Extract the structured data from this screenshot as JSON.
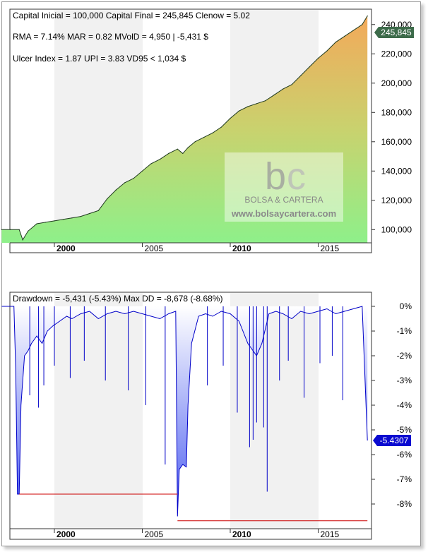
{
  "chart_data": [
    {
      "type": "area",
      "name": "equity",
      "stats": [
        "Capital Inicial = 100,000  Capital Final = 245,845  Clenow = 5.02",
        "RMA = 7.14%   MAR = 0.82  MVolD = 4,950 | -5,431 $",
        "Ulcer Index = 1.87   UPI = 3.83   VD95 < 1,034 $"
      ],
      "x": [
        1997.0,
        1997.5,
        1998.0,
        1998.2,
        1998.5,
        1999.0,
        1999.5,
        2000.0,
        2000.5,
        2001.0,
        2001.5,
        2002.0,
        2002.5,
        2003.0,
        2003.5,
        2004.0,
        2004.5,
        2005.0,
        2005.5,
        2006.0,
        2006.5,
        2007.0,
        2007.3,
        2007.6,
        2008.0,
        2008.5,
        2009.0,
        2009.5,
        2010.0,
        2010.5,
        2011.0,
        2011.5,
        2012.0,
        2012.5,
        2013.0,
        2013.5,
        2014.0,
        2014.5,
        2015.0,
        2015.5,
        2016.0,
        2016.5,
        2017.0,
        2017.5,
        2017.8
      ],
      "y": [
        100000,
        100000,
        100000,
        93000,
        99000,
        104000,
        105000,
        106000,
        107000,
        108000,
        109000,
        111000,
        113000,
        121000,
        127000,
        132000,
        135000,
        140000,
        145000,
        148000,
        152000,
        155000,
        152000,
        156000,
        160000,
        163000,
        166000,
        170000,
        176000,
        181000,
        184000,
        186000,
        188000,
        192000,
        196000,
        199000,
        205000,
        211000,
        217000,
        222000,
        228000,
        232000,
        236000,
        240000,
        245845
      ],
      "ylim": [
        91000,
        250000
      ],
      "y_ticks": [
        "100,000",
        "120,000",
        "140,000",
        "160,000",
        "180,000",
        "200,000",
        "220,000",
        "240,000"
      ],
      "x_ticks": [
        "2000",
        "2005",
        "2010",
        "2015"
      ],
      "last_value_label": "245,845",
      "colors": {
        "area_top": "#f3a95a",
        "area_bottom": "#8ef08a",
        "line": "#1f3a1f",
        "badge": "#3d6b4a"
      }
    },
    {
      "type": "area",
      "name": "drawdown",
      "stats": [
        "Drawdown = -5,431 (-5.43%)      Max DD = -8,678 (-8.68%)"
      ],
      "x": [
        1997.0,
        1997.7,
        1997.8,
        1997.9,
        1998.0,
        1998.1,
        1998.2,
        1998.3,
        1998.5,
        1998.7,
        1999.0,
        1999.3,
        1999.6,
        1999.9,
        2000.3,
        2000.7,
        2001.0,
        2001.5,
        2002.0,
        2002.5,
        2003.0,
        2003.5,
        2004.0,
        2004.5,
        2005.0,
        2005.5,
        2006.0,
        2006.5,
        2006.9,
        2007.0,
        2007.1,
        2007.3,
        2007.5,
        2007.6,
        2007.8,
        2008.2,
        2008.6,
        2009.0,
        2009.5,
        2010.0,
        2010.5,
        2011.0,
        2011.5,
        2011.8,
        2012.2,
        2012.6,
        2013.0,
        2013.5,
        2014.0,
        2014.5,
        2015.0,
        2015.5,
        2016.0,
        2016.5,
        2017.0,
        2017.5,
        2017.8
      ],
      "y": [
        0.0,
        0.0,
        -2.5,
        -7.6,
        -7.6,
        -4.0,
        -3.0,
        -2.0,
        -1.8,
        -1.5,
        -1.2,
        -1.5,
        -1.0,
        -0.8,
        -0.6,
        -0.4,
        -0.5,
        -0.3,
        -0.2,
        -0.5,
        -0.3,
        -0.2,
        -0.3,
        -0.2,
        -0.3,
        -0.4,
        -0.5,
        -0.3,
        -0.2,
        -8.5,
        -6.6,
        -6.4,
        -6.5,
        -4.0,
        -1.5,
        -0.4,
        -0.3,
        -0.4,
        -0.2,
        -0.3,
        -0.6,
        -1.5,
        -2.0,
        -1.5,
        -0.3,
        -0.2,
        -0.3,
        -0.5,
        -0.2,
        -0.3,
        -0.2,
        -0.1,
        -0.3,
        -0.2,
        -0.1,
        0.0,
        -5.43
      ],
      "spikes": [
        [
          1998.6,
          -3.6
        ],
        [
          1999.1,
          -4.1
        ],
        [
          1999.4,
          -3.2
        ],
        [
          2000.0,
          -2.4
        ],
        [
          2000.9,
          -2.9
        ],
        [
          2001.7,
          -2.2
        ],
        [
          2002.9,
          -3.0
        ],
        [
          2004.2,
          -3.4
        ],
        [
          2005.2,
          -4.0
        ],
        [
          2006.3,
          -6.4
        ],
        [
          2008.7,
          -3.2
        ],
        [
          2009.6,
          -2.4
        ],
        [
          2010.4,
          -4.3
        ],
        [
          2011.1,
          -5.7
        ],
        [
          2011.3,
          -5.4
        ],
        [
          2011.5,
          -4.7
        ],
        [
          2011.9,
          -4.9
        ],
        [
          2012.1,
          -7.5
        ],
        [
          2012.8,
          -3.0
        ],
        [
          2013.3,
          -2.2
        ],
        [
          2014.2,
          -3.7
        ],
        [
          2015.1,
          -2.3
        ],
        [
          2015.8,
          -2.0
        ],
        [
          2016.4,
          -3.8
        ]
      ],
      "max_dd_lines": [
        {
          "from": 1998.0,
          "to": 2007.0,
          "value": -7.6
        },
        {
          "from": 2007.0,
          "to": 2017.8,
          "value": -8.68
        }
      ],
      "ylim": [
        -9.0,
        0.4
      ],
      "y_ticks": [
        "0%",
        "-1%",
        "-2%",
        "-3%",
        "-4%",
        "-5%",
        "-6%",
        "-7%",
        "-8%"
      ],
      "x_ticks": [
        "2000",
        "2005",
        "2010",
        "2015"
      ],
      "last_value_label": "-5.4307",
      "colors": {
        "line": "#0000c8",
        "fill_top": "#ffffff",
        "fill_bottom": "#4a5cf0",
        "maxdd": "#cc0000",
        "badge": "#0a0ad0"
      }
    }
  ],
  "watermark": {
    "name": "BOLSA & CARTERA",
    "url": "www.bolsaycartera.com"
  }
}
